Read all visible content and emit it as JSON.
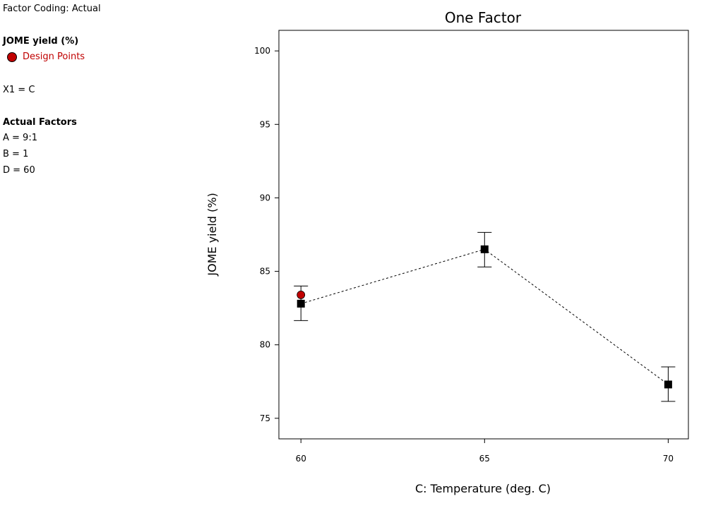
{
  "legend": {
    "coding": "Factor Coding: Actual",
    "response": "JOME yield (%)",
    "design_points_label": "Design Points",
    "x1": "X1 = C",
    "actual_factors_title": "Actual Factors",
    "factors": [
      "A = 9:1",
      "B = 1",
      "D = 60"
    ]
  },
  "colors": {
    "design_point": "#c00000",
    "mean_marker": "#000000",
    "line": "#000000"
  },
  "chart_data": {
    "type": "line",
    "title": "One Factor",
    "xlabel": "C: Temperature (deg. C)",
    "ylabel": "JOME yield (%)",
    "xlim": [
      59.4,
      70.55
    ],
    "ylim": [
      73.6,
      101.4
    ],
    "x_ticks": [
      60,
      65,
      70
    ],
    "y_ticks": [
      75,
      80,
      85,
      90,
      95,
      100
    ],
    "line_style": "dashed",
    "series": [
      {
        "x": [
          60,
          65,
          70
        ],
        "y": [
          82.8,
          86.5,
          77.3
        ],
        "error_low": [
          81.65,
          85.3,
          76.15
        ],
        "error_high": [
          84.0,
          87.65,
          78.5
        ]
      }
    ],
    "design_points": [
      {
        "x": 60,
        "y": 83.4
      }
    ]
  }
}
